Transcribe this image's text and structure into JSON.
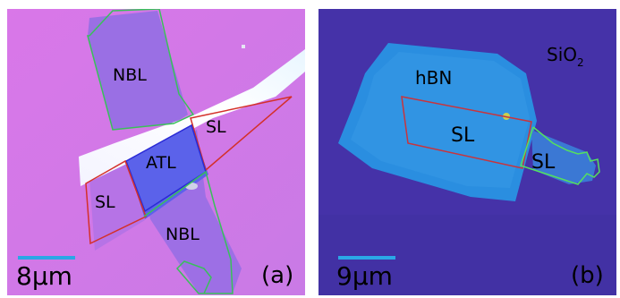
{
  "panel_a": {
    "labels": {
      "nbl_top": "NBL",
      "sl_right": "SL",
      "atl": "ATL",
      "sl_left": "SL",
      "nbl_bottom": "NBL"
    },
    "scale_bar": "8μm",
    "panel_tag": "(a)",
    "colors": {
      "background": "#d47ae6",
      "flake": "#9f70e6",
      "outline_green": "#39c05a",
      "outline_red": "#d4302a",
      "outline_blue": "#2a2ad6",
      "scale_bar": "#2aa7e6"
    }
  },
  "panel_b": {
    "labels": {
      "substrate": "SiO",
      "substrate_sub": "2",
      "hbn": "hBN",
      "sl_center": "SL",
      "sl_right": "SL"
    },
    "scale_bar": "9μm",
    "panel_tag": "(b)",
    "colors": {
      "background": "#4431a6",
      "hbn": "#2b8ee0",
      "outline_red": "#c9343c",
      "outline_green": "#55e05e",
      "scale_bar": "#2aa7e6"
    }
  }
}
